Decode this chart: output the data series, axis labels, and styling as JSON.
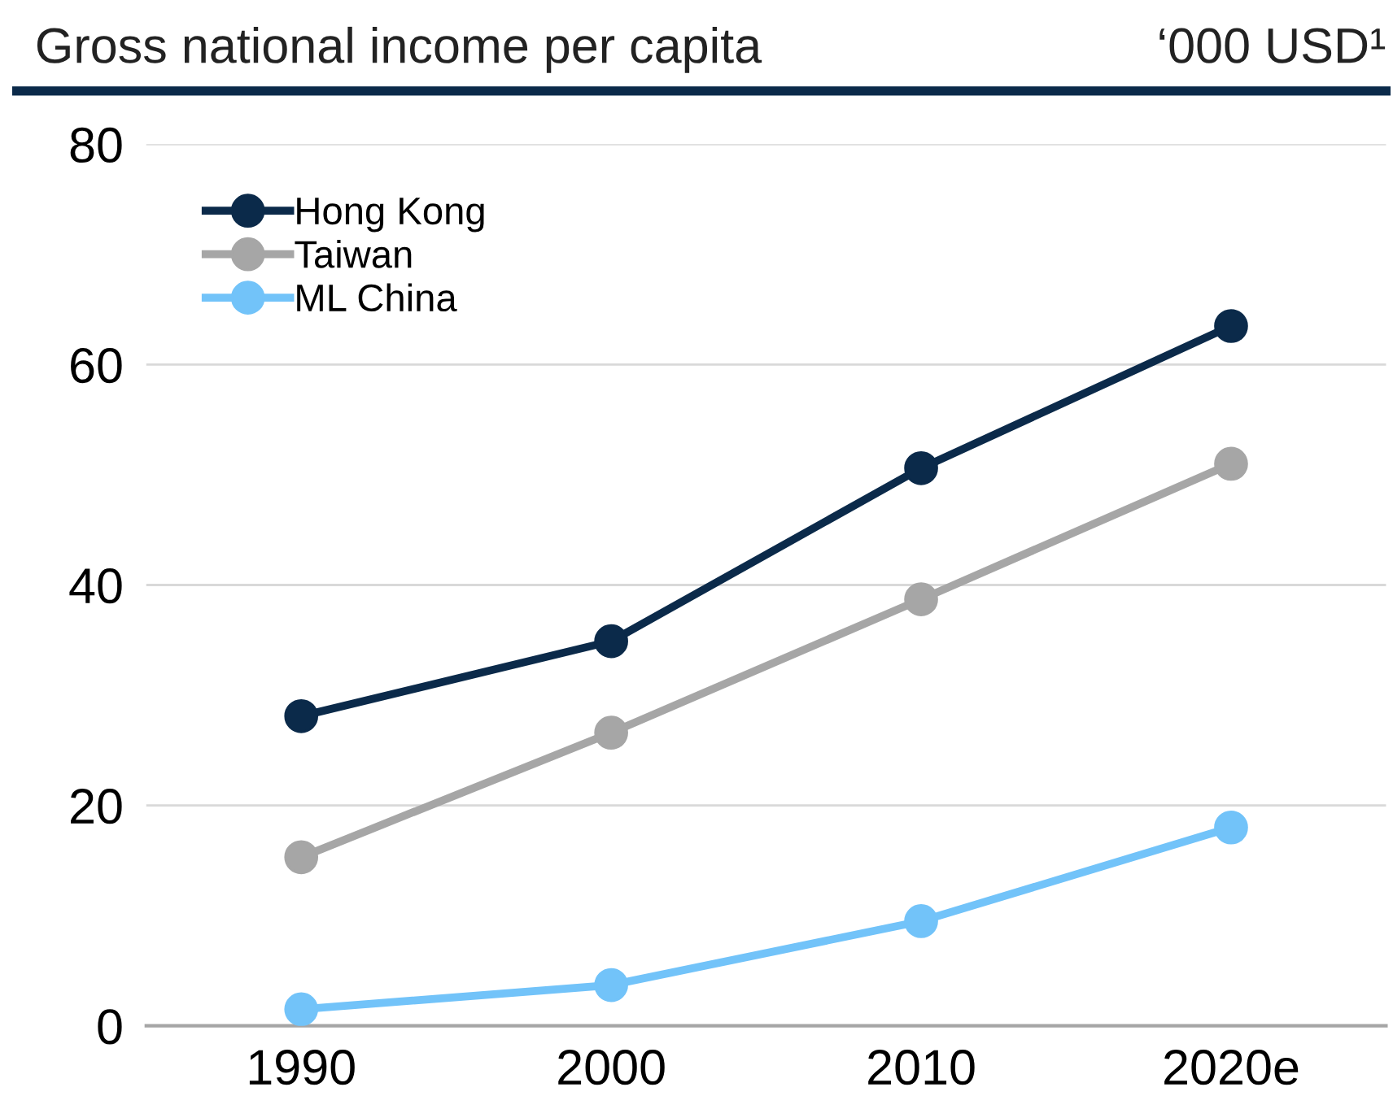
{
  "chart_data": {
    "type": "line",
    "title": "Gross national income per capita",
    "ylabel": "‘000 USD¹",
    "categories": [
      "1990",
      "2000",
      "2010",
      "2020e"
    ],
    "series": [
      {
        "name": "Hong Kong",
        "color": "#0b2a4a",
        "values": [
          28.1,
          34.9,
          50.6,
          63.5
        ]
      },
      {
        "name": "Taiwan",
        "color": "#a6a6a6",
        "values": [
          15.3,
          26.6,
          38.7,
          51.0
        ]
      },
      {
        "name": "ML China",
        "color": "#72c3f9",
        "values": [
          1.5,
          3.7,
          9.5,
          18.0
        ]
      }
    ],
    "ylim": [
      0,
      80
    ],
    "yticks": [
      0,
      20,
      40,
      60,
      80
    ],
    "grid": "y",
    "legend": "top left",
    "marker": "circle",
    "line_style": "solid"
  }
}
